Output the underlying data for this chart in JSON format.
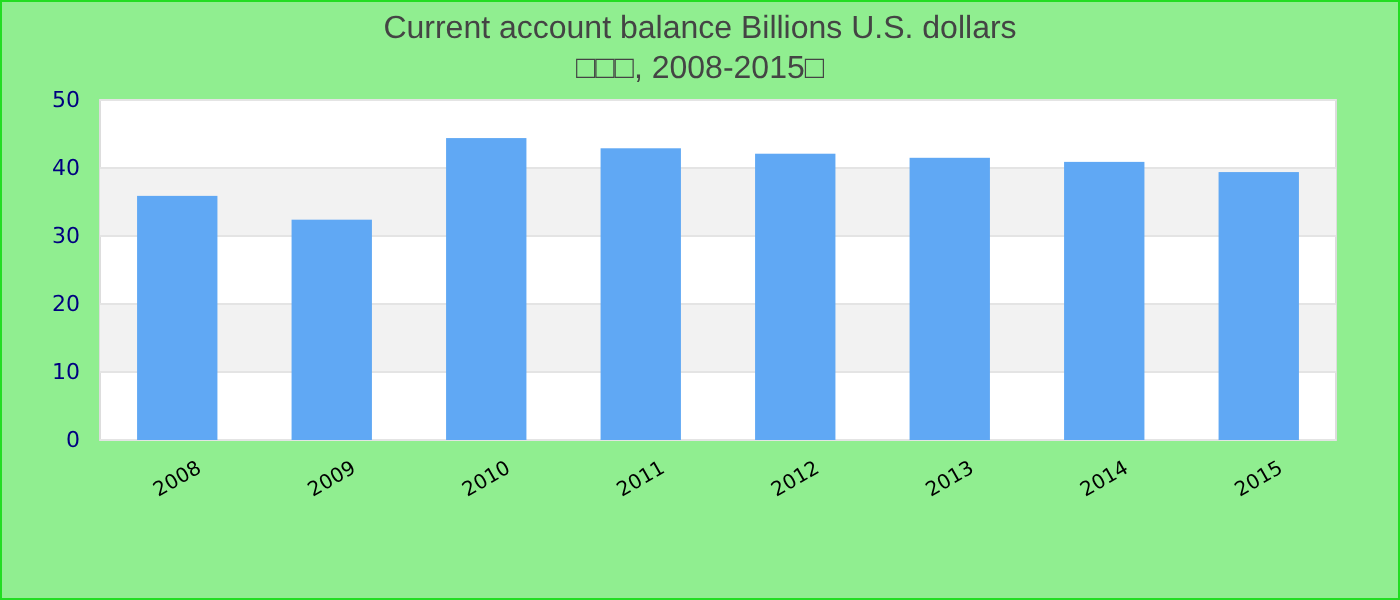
{
  "chart_data": {
    "type": "bar",
    "title": "Current account balance Billions U.S. dollars",
    "subtitle": "□□□, 2008-2015□",
    "categories": [
      "2008",
      "2009",
      "2010",
      "2011",
      "2012",
      "2013",
      "2014",
      "2015"
    ],
    "values": [
      35.9,
      32.4,
      44.4,
      42.9,
      42.1,
      41.5,
      40.9,
      39.4
    ],
    "color": "#60a8f4",
    "ylim": [
      0,
      50
    ],
    "yticks": [
      0,
      10,
      20,
      30,
      40,
      50
    ],
    "grid": "y"
  }
}
